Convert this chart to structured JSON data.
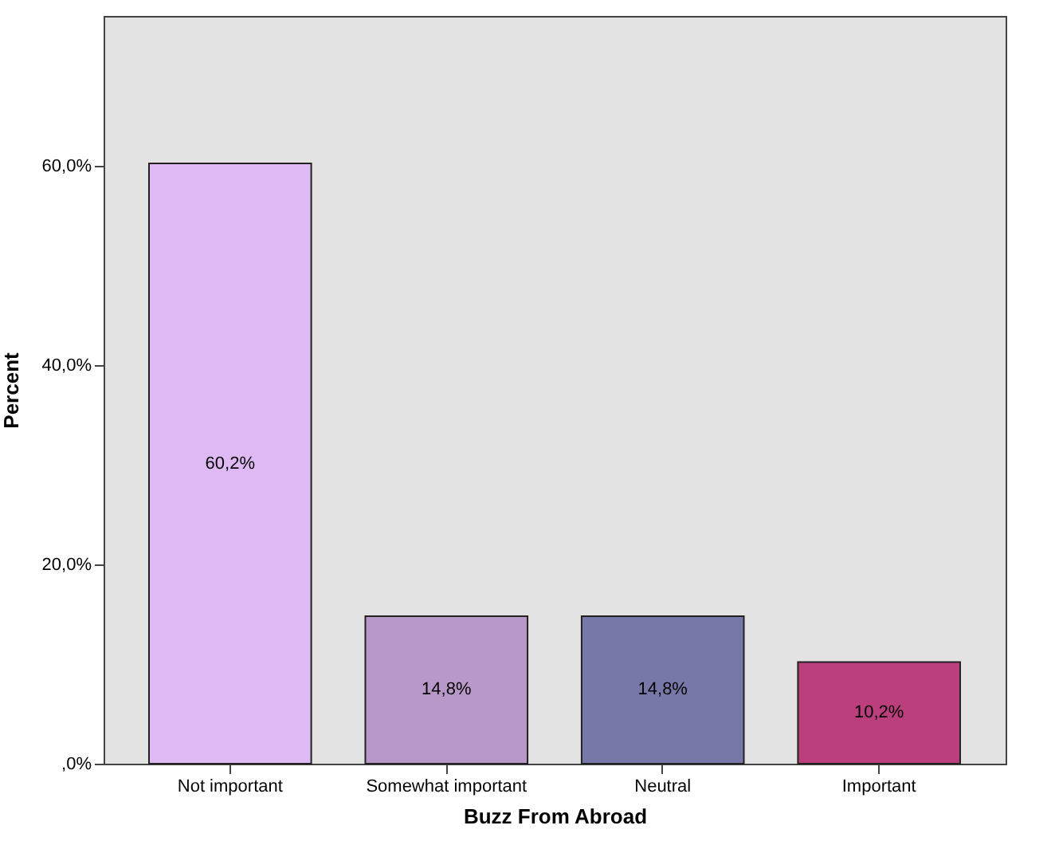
{
  "chart_data": {
    "type": "bar",
    "xlabel": "Buzz From Abroad",
    "ylabel": "Percent",
    "categories": [
      "Not important",
      "Somewhat important",
      "Neutral",
      "Important"
    ],
    "values": [
      60.2,
      14.8,
      14.8,
      10.2
    ],
    "colors": [
      "#deb9f3",
      "#b898c8",
      "#7878a8",
      "#bb3f7c"
    ],
    "value_labels": [
      "60,2%",
      "14,8%",
      "14,8%",
      "10,2%"
    ],
    "ylim": [
      0,
      75
    ],
    "yticks": [
      {
        "value": 0,
        "label": ",0%"
      },
      {
        "value": 20,
        "label": "20,0%"
      },
      {
        "value": 40,
        "label": "40,0%"
      },
      {
        "value": 60,
        "label": "60,0%"
      }
    ],
    "grid": false
  }
}
